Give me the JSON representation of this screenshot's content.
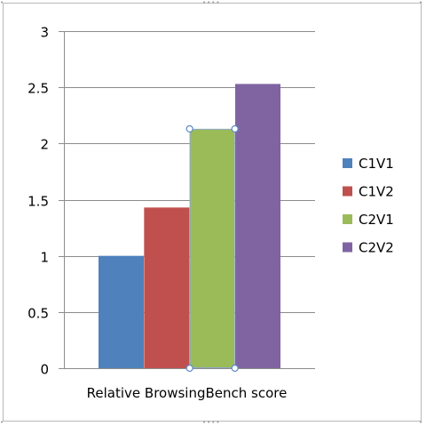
{
  "chart_data": {
    "type": "bar",
    "categories": [
      "Relative BrowsingBench score"
    ],
    "series": [
      {
        "name": "C1V1",
        "values": [
          1.0
        ],
        "color": "#4f81bd"
      },
      {
        "name": "C1V2",
        "values": [
          1.43
        ],
        "color": "#c0504d"
      },
      {
        "name": "C2V1",
        "values": [
          2.13
        ],
        "color": "#9bbb59",
        "selected": true
      },
      {
        "name": "C2V2",
        "values": [
          2.53
        ],
        "color": "#8064a2"
      }
    ],
    "ylim": [
      0,
      3
    ],
    "yticks": [
      "0",
      "0.5",
      "1",
      "1.5",
      "2",
      "2.5",
      "3"
    ],
    "grid": true,
    "legend_position": "right",
    "xlabel": "",
    "ylabel": "",
    "title": ""
  }
}
